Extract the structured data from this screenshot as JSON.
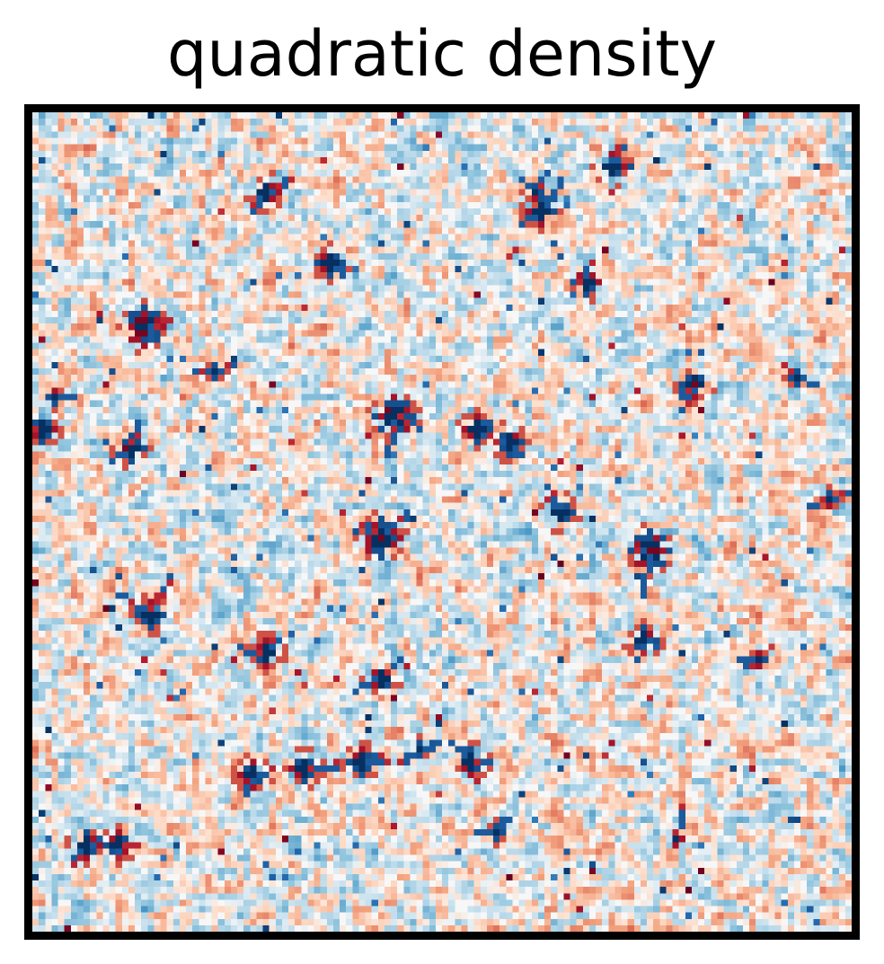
{
  "chart_data": {
    "type": "heatmap",
    "title": "quadratic density",
    "xlabel": "",
    "ylabel": "",
    "grid": false,
    "legend": false,
    "ticks": false,
    "colormap": "RdBu_r",
    "colors": {
      "neg_strong": "#053061",
      "neg_mid": "#4393c3",
      "neg_light": "#d1e5f0",
      "neutral": "#f7f7f7",
      "pos_light": "#fddbc7",
      "pos_mid": "#d6604d",
      "pos_strong": "#67001f"
    },
    "value_range": [
      -1,
      1
    ],
    "grid_size": [
      128,
      128
    ],
    "noise_seed": 20240517,
    "hotspots": [
      {
        "col": 96,
        "row": 68,
        "value": 1.0
      },
      {
        "col": 54,
        "row": 66,
        "value": 0.85
      },
      {
        "col": 17,
        "row": 33,
        "value": 0.9
      },
      {
        "col": 56,
        "row": 47,
        "value": 0.85
      },
      {
        "col": 15,
        "row": 52,
        "value": 0.75
      },
      {
        "col": 18,
        "row": 78,
        "value": 0.8
      },
      {
        "col": 46,
        "row": 23,
        "value": 0.75
      },
      {
        "col": 103,
        "row": 42,
        "value": 0.8
      },
      {
        "col": 86,
        "row": 26,
        "value": 0.6
      },
      {
        "col": 79,
        "row": 15,
        "value": 0.6
      },
      {
        "col": 90,
        "row": 8,
        "value": 0.55
      },
      {
        "col": 74,
        "row": 51,
        "value": 0.6
      },
      {
        "col": 82,
        "row": 62,
        "value": 0.55
      },
      {
        "col": 69,
        "row": 49,
        "value": 0.55
      },
      {
        "col": 42,
        "row": 102,
        "value": 0.7
      },
      {
        "col": 51,
        "row": 101,
        "value": 0.55
      },
      {
        "col": 8,
        "row": 114,
        "value": 0.7
      },
      {
        "col": 13,
        "row": 114,
        "value": 0.55
      },
      {
        "col": 36,
        "row": 12,
        "value": 0.55
      },
      {
        "col": 1,
        "row": 49,
        "value": 0.55
      },
      {
        "col": 54,
        "row": 88,
        "value": 0.55
      },
      {
        "col": 36,
        "row": 84,
        "value": 0.55
      },
      {
        "col": 34,
        "row": 103,
        "value": 0.5
      },
      {
        "col": 78,
        "row": 12,
        "value": 0.45
      },
      {
        "col": 68,
        "row": 101,
        "value": 0.5
      },
      {
        "col": 60,
        "row": 99,
        "value": 0.45
      },
      {
        "col": 28,
        "row": 40,
        "value": 0.45
      },
      {
        "col": 3,
        "row": 44,
        "value": 0.45
      },
      {
        "col": 124,
        "row": 60,
        "value": 0.45
      },
      {
        "col": 95,
        "row": 82,
        "value": 0.5
      },
      {
        "col": 113,
        "row": 85,
        "value": 0.45
      },
      {
        "col": 119,
        "row": 41,
        "value": 0.45
      },
      {
        "col": 72,
        "row": 112,
        "value": 0.45
      },
      {
        "col": 100,
        "row": 113,
        "value": 0.45
      }
    ]
  }
}
